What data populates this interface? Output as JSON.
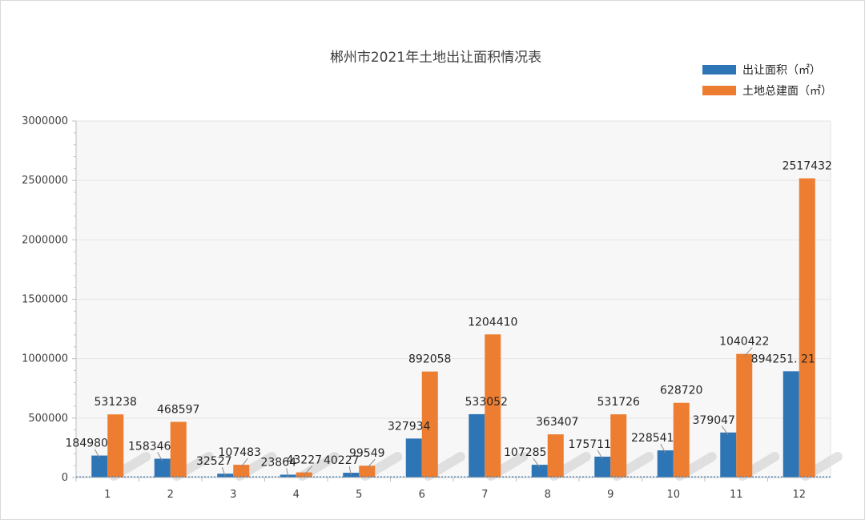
{
  "chart_data": {
    "type": "bar",
    "title": "郴州市2021年土地出让面积情况表",
    "xlabel": "",
    "ylabel": "",
    "categories": [
      "1",
      "2",
      "3",
      "4",
      "5",
      "6",
      "7",
      "8",
      "9",
      "10",
      "11",
      "12"
    ],
    "series": [
      {
        "name": "出让面积（㎡）",
        "color": "#2e75b6",
        "values": [
          184980,
          158346,
          32527,
          23864,
          40227,
          327934,
          533052,
          107285,
          175711,
          228541,
          379047,
          894251.21
        ],
        "labels": [
          "184980",
          "158346",
          "32527",
          "23864",
          "40227",
          "327934",
          "533052",
          "107285",
          "175711",
          "228541",
          "379047",
          "894251. 21"
        ]
      },
      {
        "name": "土地总建面（㎡）",
        "color": "#ed7d31",
        "values": [
          531238,
          468597,
          107483,
          43227,
          99549,
          892058,
          1204410,
          363407,
          531726,
          628720,
          1040422,
          2517432
        ],
        "labels": [
          "531238",
          "468597",
          "107483",
          "43227",
          "99549",
          "892058",
          "1204410",
          "363407",
          "531726",
          "628720",
          "1040422",
          "2517432"
        ]
      }
    ],
    "ylim": [
      0,
      3000000
    ],
    "yticks": [
      "0",
      "500000",
      "1000000",
      "1500000",
      "2000000",
      "2500000",
      "3000000"
    ],
    "grid": true,
    "legend": "top-right"
  }
}
